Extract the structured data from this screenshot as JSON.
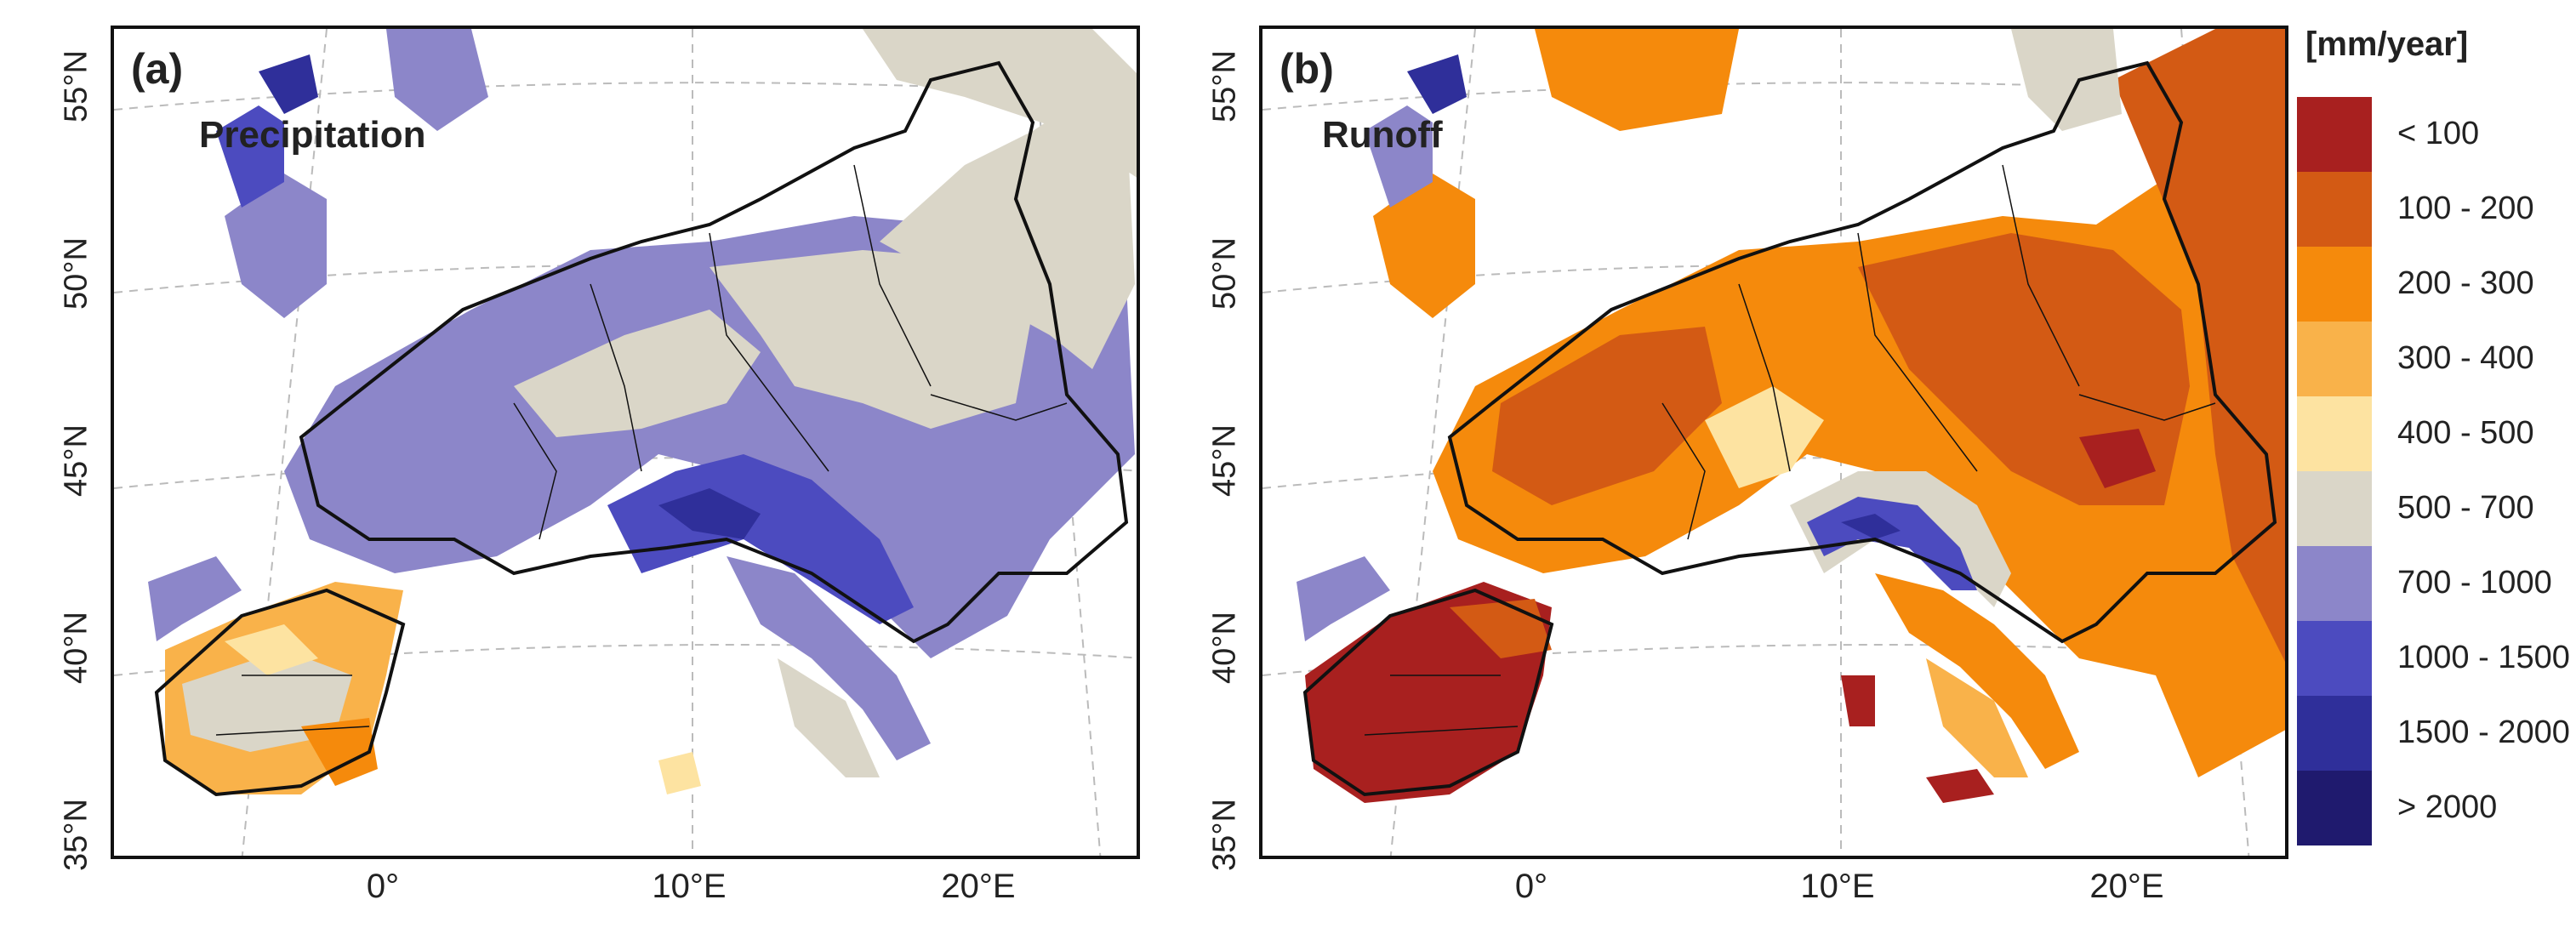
{
  "panels": [
    {
      "letter": "(a)",
      "variable": "Precipitation"
    },
    {
      "letter": "(b)",
      "variable": "Runoff"
    }
  ],
  "lat_labels": [
    "55°N",
    "50°N",
    "45°N",
    "40°N",
    "35°N"
  ],
  "lon_labels": [
    "0°",
    "10°E",
    "20°E"
  ],
  "legend": {
    "title": "[mm/year]",
    "classes": [
      {
        "label": "< 100",
        "color": "#a8201f"
      },
      {
        "label": "100 - 200",
        "color": "#d35a14"
      },
      {
        "label": "200 - 300",
        "color": "#f58a0c"
      },
      {
        "label": "300 - 400",
        "color": "#f9b24a"
      },
      {
        "label": "400 - 500",
        "color": "#fde3a1"
      },
      {
        "label": "500 - 700",
        "color": "#dad6c8"
      },
      {
        "label": "700 - 1000",
        "color": "#8c86c9"
      },
      {
        "label": "1000 - 1500",
        "color": "#4c4bbf"
      },
      {
        "label": "1500 - 2000",
        "color": "#2f2f9a"
      },
      {
        "label": "> 2000",
        "color": "#1f1a6e"
      }
    ]
  }
}
